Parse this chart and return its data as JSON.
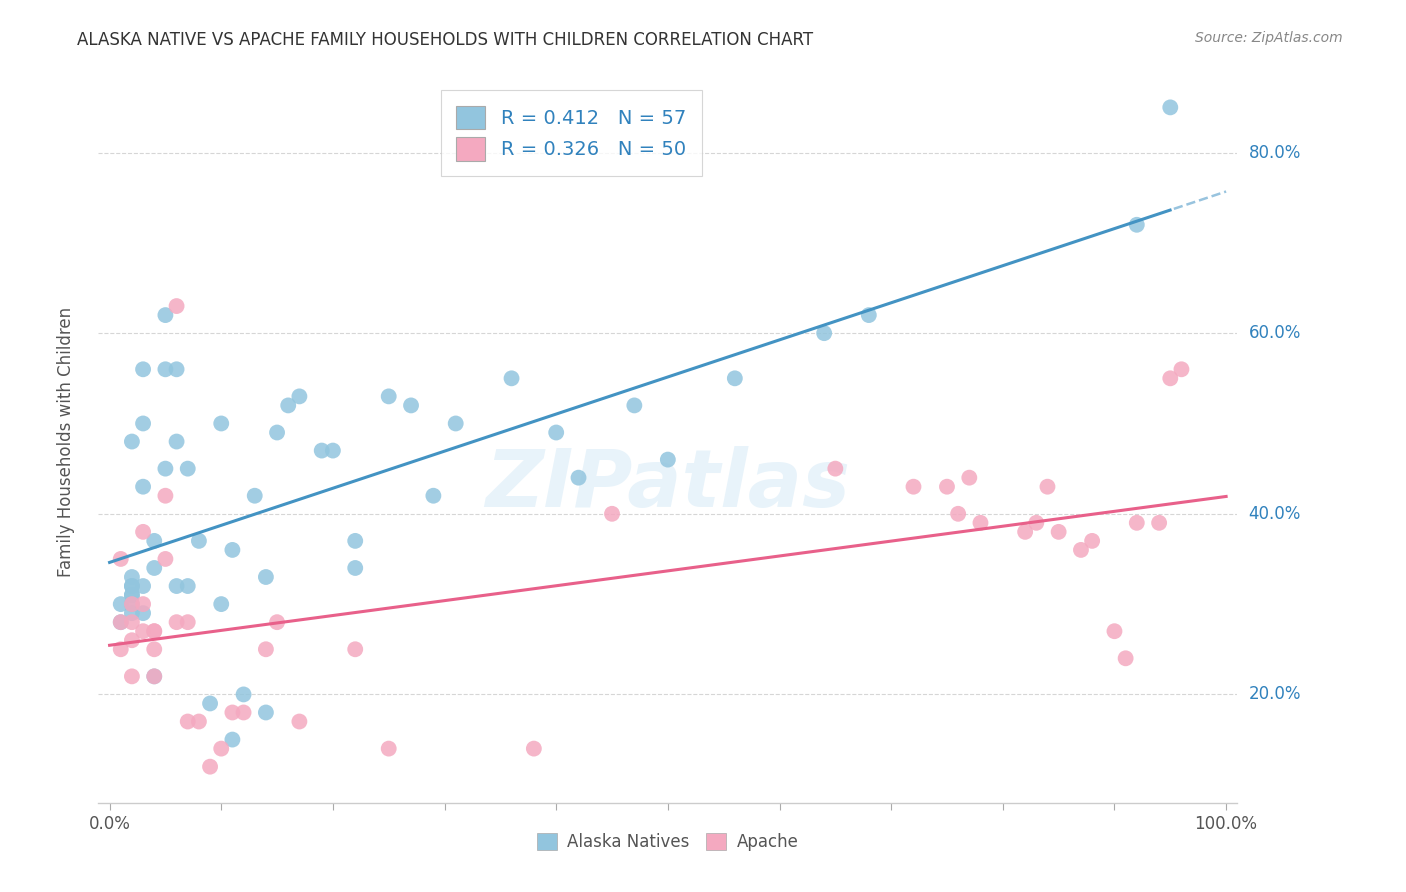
{
  "title": "ALASKA NATIVE VS APACHE FAMILY HOUSEHOLDS WITH CHILDREN CORRELATION CHART",
  "source": "Source: ZipAtlas.com",
  "ylabel": "Family Households with Children",
  "watermark": "ZIPatlas",
  "alaska_color": "#92c5de",
  "apache_color": "#f4a9c0",
  "alaska_R": 0.412,
  "alaska_N": 57,
  "apache_R": 0.326,
  "apache_N": 50,
  "alaska_line_color": "#4393c3",
  "apache_line_color": "#e8608a",
  "legend_label_color": "#3182bd",
  "yticks": [
    0.2,
    0.4,
    0.6,
    0.8
  ],
  "ytick_labels": [
    "20.0%",
    "40.0%",
    "60.0%",
    "80.0%"
  ],
  "xticks": [
    0.0,
    0.1,
    0.2,
    0.3,
    0.4,
    0.5,
    0.6,
    0.7,
    0.8,
    0.9,
    1.0
  ],
  "xlim": [
    -0.01,
    1.01
  ],
  "ylim": [
    0.08,
    0.88
  ],
  "background_color": "#ffffff",
  "alaska_x": [
    0.01,
    0.01,
    0.02,
    0.02,
    0.02,
    0.02,
    0.02,
    0.02,
    0.02,
    0.02,
    0.03,
    0.03,
    0.03,
    0.03,
    0.03,
    0.04,
    0.04,
    0.04,
    0.05,
    0.05,
    0.05,
    0.06,
    0.06,
    0.06,
    0.07,
    0.07,
    0.08,
    0.09,
    0.1,
    0.1,
    0.11,
    0.11,
    0.12,
    0.13,
    0.14,
    0.14,
    0.15,
    0.16,
    0.17,
    0.19,
    0.2,
    0.22,
    0.22,
    0.25,
    0.27,
    0.29,
    0.31,
    0.36,
    0.4,
    0.42,
    0.47,
    0.5,
    0.56,
    0.64,
    0.68,
    0.92,
    0.95
  ],
  "alaska_y": [
    0.3,
    0.28,
    0.33,
    0.32,
    0.3,
    0.32,
    0.31,
    0.29,
    0.31,
    0.48,
    0.43,
    0.56,
    0.5,
    0.32,
    0.29,
    0.37,
    0.34,
    0.22,
    0.45,
    0.56,
    0.62,
    0.56,
    0.48,
    0.32,
    0.32,
    0.45,
    0.37,
    0.19,
    0.3,
    0.5,
    0.36,
    0.15,
    0.2,
    0.42,
    0.33,
    0.18,
    0.49,
    0.52,
    0.53,
    0.47,
    0.47,
    0.37,
    0.34,
    0.53,
    0.52,
    0.42,
    0.5,
    0.55,
    0.49,
    0.44,
    0.52,
    0.46,
    0.55,
    0.6,
    0.62,
    0.72,
    0.85
  ],
  "apache_x": [
    0.01,
    0.01,
    0.01,
    0.02,
    0.02,
    0.02,
    0.02,
    0.03,
    0.03,
    0.03,
    0.04,
    0.04,
    0.04,
    0.04,
    0.05,
    0.05,
    0.06,
    0.06,
    0.07,
    0.07,
    0.08,
    0.09,
    0.1,
    0.11,
    0.12,
    0.14,
    0.15,
    0.17,
    0.22,
    0.25,
    0.38,
    0.45,
    0.65,
    0.72,
    0.75,
    0.76,
    0.77,
    0.78,
    0.82,
    0.83,
    0.84,
    0.85,
    0.87,
    0.88,
    0.9,
    0.91,
    0.92,
    0.94,
    0.95,
    0.96
  ],
  "apache_y": [
    0.35,
    0.28,
    0.25,
    0.28,
    0.3,
    0.26,
    0.22,
    0.3,
    0.27,
    0.38,
    0.27,
    0.22,
    0.25,
    0.27,
    0.42,
    0.35,
    0.63,
    0.28,
    0.28,
    0.17,
    0.17,
    0.12,
    0.14,
    0.18,
    0.18,
    0.25,
    0.28,
    0.17,
    0.25,
    0.14,
    0.14,
    0.4,
    0.45,
    0.43,
    0.43,
    0.4,
    0.44,
    0.39,
    0.38,
    0.39,
    0.43,
    0.38,
    0.36,
    0.37,
    0.27,
    0.24,
    0.39,
    0.39,
    0.55,
    0.56
  ]
}
